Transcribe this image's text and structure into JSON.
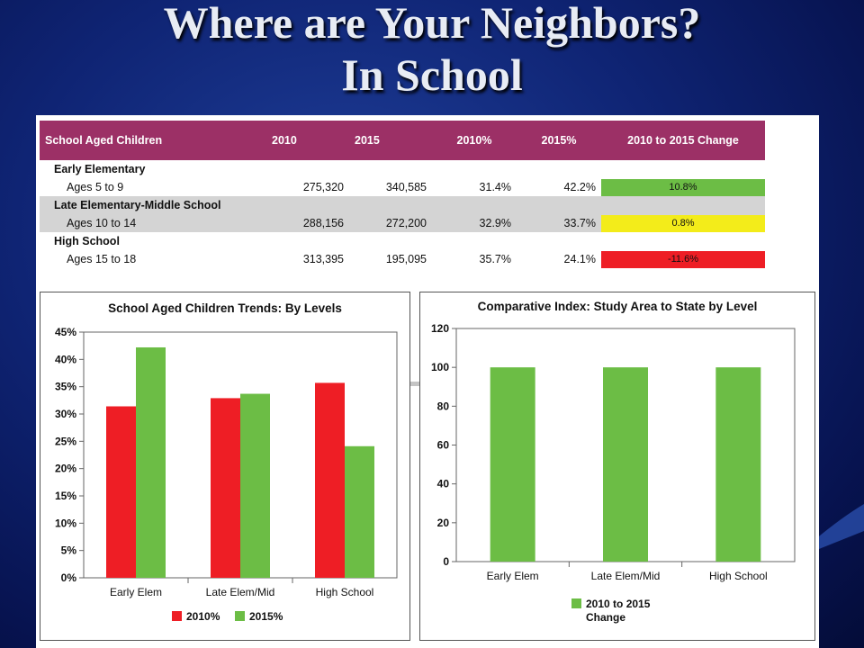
{
  "slide": {
    "title_line1": "Where are Your Neighbors?",
    "title_line2": "In School"
  },
  "colors": {
    "header_bg": "#9c3066",
    "green": "#6cbd45",
    "yellow": "#f3ec1a",
    "red": "#ee1e25",
    "bg": "#0f2474"
  },
  "table": {
    "headers": [
      "School Aged Children",
      "2010",
      "2015",
      "2010%",
      "2015%",
      "2010 to 2015 Change"
    ],
    "groups": [
      {
        "name": "Early Elementary",
        "sub": "Ages 5 to 9",
        "v2010": "275,320",
        "v2015": "340,585",
        "p2010": "31.4%",
        "p2015": "42.2%",
        "change": "10.8%",
        "change_color": "#6cbd45"
      },
      {
        "name": "Late Elementary-Middle School",
        "sub": "Ages 10 to 14",
        "v2010": "288,156",
        "v2015": "272,200",
        "p2010": "32.9%",
        "p2015": "33.7%",
        "change": "0.8%",
        "change_color": "#f3ec1a"
      },
      {
        "name": "High School",
        "sub": "Ages 15 to 18",
        "v2010": "313,395",
        "v2015": "195,095",
        "p2010": "35.7%",
        "p2015": "24.1%",
        "change": "-11.6%",
        "change_color": "#ee1e25"
      }
    ]
  },
  "chart_data": [
    {
      "type": "bar",
      "title": "School Aged Children Trends: By Levels",
      "categories": [
        "Early Elem",
        "Late Elem/Mid",
        "High School"
      ],
      "series": [
        {
          "name": "2010%",
          "values": [
            31.4,
            32.9,
            35.7
          ],
          "color": "#ee1e25"
        },
        {
          "name": "2015%",
          "values": [
            42.2,
            33.7,
            24.1
          ],
          "color": "#6cbd45"
        }
      ],
      "ylim": [
        0,
        45
      ],
      "yticks": [
        "0%",
        "5%",
        "10%",
        "15%",
        "20%",
        "25%",
        "30%",
        "35%",
        "40%",
        "45%"
      ],
      "grid": false,
      "legend": "bottom"
    },
    {
      "type": "bar",
      "title": "Comparative Index: Study Area to State by Level",
      "categories": [
        "Early Elem",
        "Late Elem/Mid",
        "High School"
      ],
      "series": [
        {
          "name": "2010 to 2015 Change",
          "values": [
            100,
            100,
            100
          ],
          "color": "#6cbd45"
        }
      ],
      "ylim": [
        0,
        120
      ],
      "yticks": [
        "0",
        "20",
        "40",
        "60",
        "80",
        "100",
        "120"
      ],
      "grid": false,
      "legend": "bottom"
    }
  ]
}
